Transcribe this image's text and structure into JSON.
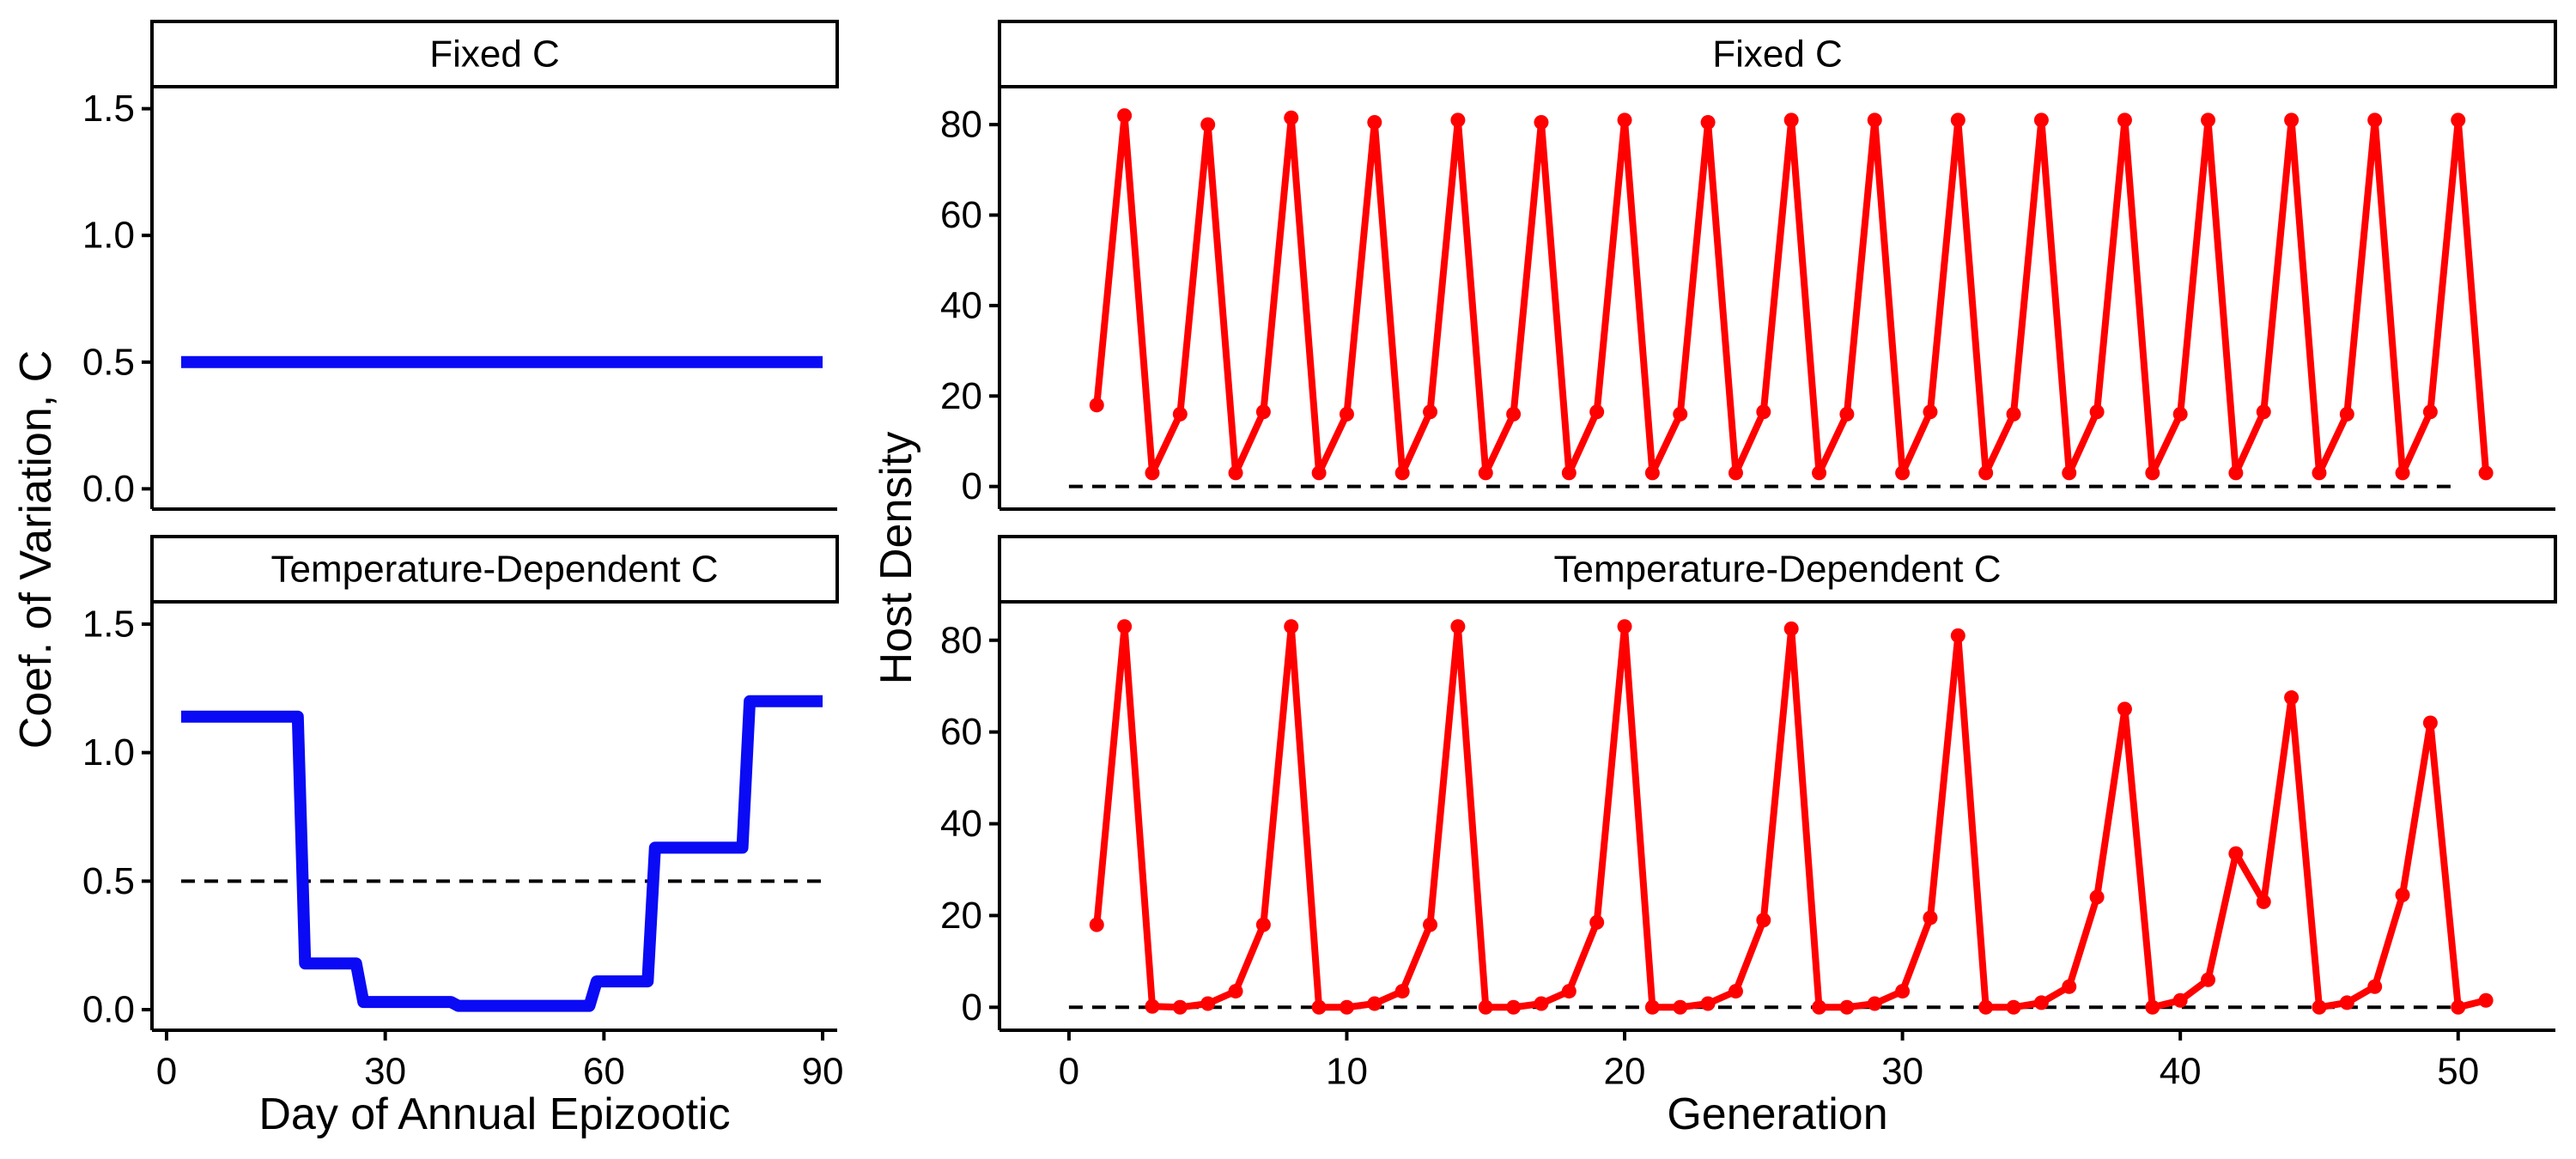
{
  "colors": {
    "coef_line": "#0a0af5",
    "host_line": "#ff0000",
    "reference_line": "#000000",
    "strip_fill": "#ffffff",
    "strip_border": "#000000"
  },
  "labels": {
    "left_y_title": "Coef. of Variation, C",
    "left_x_title": "Day of Annual Epizootic",
    "right_y_title": "Host Density",
    "right_x_title": "Generation",
    "strip_top_left": "Fixed C",
    "strip_bottom_left": "Temperature-Dependent C",
    "strip_top_right": "Fixed C",
    "strip_bottom_right": "Temperature-Dependent C"
  },
  "chart_data": [
    {
      "type": "line",
      "facet": "Fixed C",
      "xlabel": "Day of Annual Epizootic",
      "ylabel": "Coef. of Variation, C",
      "xlim": [
        -2,
        92
      ],
      "ylim": [
        -0.08,
        1.58
      ],
      "x_ticks": [
        "0",
        "30",
        "60",
        "90"
      ],
      "y_ticks": [
        "0.0",
        "0.5",
        "1.0",
        "1.5"
      ],
      "reference_line": null,
      "series": [
        {
          "x": [
            2,
            90
          ],
          "y": [
            0.5,
            0.5
          ]
        }
      ]
    },
    {
      "type": "line",
      "facet": "Temperature-Dependent C",
      "xlabel": "Day of Annual Epizootic",
      "ylabel": "Coef. of Variation, C",
      "xlim": [
        -2,
        92
      ],
      "ylim": [
        -0.08,
        1.58
      ],
      "x_ticks": [
        "0",
        "30",
        "60",
        "90"
      ],
      "y_ticks": [
        "0.0",
        "0.5",
        "1.0",
        "1.5"
      ],
      "reference_line": 0.5,
      "series": [
        {
          "x": [
            2,
            18,
            19,
            26,
            27,
            39,
            40,
            58,
            59,
            66,
            67,
            79,
            80,
            90
          ],
          "y": [
            1.14,
            1.14,
            0.18,
            0.18,
            0.03,
            0.03,
            0.015,
            0.015,
            0.11,
            0.11,
            0.63,
            0.63,
            1.2,
            1.2
          ]
        }
      ]
    },
    {
      "type": "line",
      "facet": "Fixed C",
      "xlabel": "Generation",
      "ylabel": "Host Density",
      "xlim": [
        -2.5,
        53.5
      ],
      "ylim": [
        -5,
        88
      ],
      "x_ticks": [
        "0",
        "10",
        "20",
        "30",
        "40",
        "50"
      ],
      "y_ticks": [
        "0",
        "20",
        "40",
        "60",
        "80"
      ],
      "reference_line": 0,
      "series": [
        {
          "x": [
            1,
            2,
            3,
            4,
            5,
            6,
            7,
            8,
            9,
            10,
            11,
            12,
            13,
            14,
            15,
            16,
            17,
            18,
            19,
            20,
            21,
            22,
            23,
            24,
            25,
            26,
            27,
            28,
            29,
            30,
            31,
            32,
            33,
            34,
            35,
            36,
            37,
            38,
            39,
            40,
            41,
            42,
            43,
            44,
            45,
            46,
            47,
            48,
            49,
            50,
            51
          ],
          "y": [
            18,
            82,
            3,
            16,
            80,
            3,
            16.5,
            81.5,
            3,
            16,
            80.5,
            3,
            16.5,
            81,
            3,
            16,
            80.5,
            3,
            16.5,
            81,
            3,
            16,
            80.5,
            3,
            16.5,
            81,
            3,
            16,
            81,
            3,
            16.5,
            81,
            3,
            16,
            81,
            3,
            16.5,
            81,
            3,
            16,
            81,
            3,
            16.5,
            81,
            3,
            16,
            81,
            3,
            16.5,
            81,
            3
          ]
        }
      ]
    },
    {
      "type": "line",
      "facet": "Temperature-Dependent C",
      "xlabel": "Generation",
      "ylabel": "Host Density",
      "xlim": [
        -2.5,
        53.5
      ],
      "ylim": [
        -5,
        88
      ],
      "x_ticks": [
        "0",
        "10",
        "20",
        "30",
        "40",
        "50"
      ],
      "y_ticks": [
        "0",
        "20",
        "40",
        "60",
        "80"
      ],
      "reference_line": 0,
      "series": [
        {
          "x": [
            1,
            2,
            3,
            4,
            5,
            6,
            7,
            8,
            9,
            10,
            11,
            12,
            13,
            14,
            15,
            16,
            17,
            18,
            19,
            20,
            21,
            22,
            23,
            24,
            25,
            26,
            27,
            28,
            29,
            30,
            31,
            32,
            33,
            34,
            35,
            36,
            37,
            38,
            39,
            40,
            41,
            42,
            43,
            44,
            45,
            46,
            47,
            48,
            49,
            50,
            51
          ],
          "y": [
            18,
            83,
            0.2,
            0,
            0.8,
            3.5,
            18,
            83,
            0,
            0,
            0.8,
            3.5,
            18,
            83,
            0,
            0,
            0.8,
            3.5,
            18.5,
            83,
            0,
            0,
            0.8,
            3.5,
            19,
            82.5,
            0,
            0,
            0.8,
            3.5,
            19.5,
            81,
            0,
            0,
            1,
            4.5,
            24,
            65,
            0,
            1.5,
            6,
            33.5,
            23,
            67.5,
            0,
            1,
            4.5,
            24.5,
            62,
            0,
            1.5
          ]
        }
      ]
    }
  ]
}
